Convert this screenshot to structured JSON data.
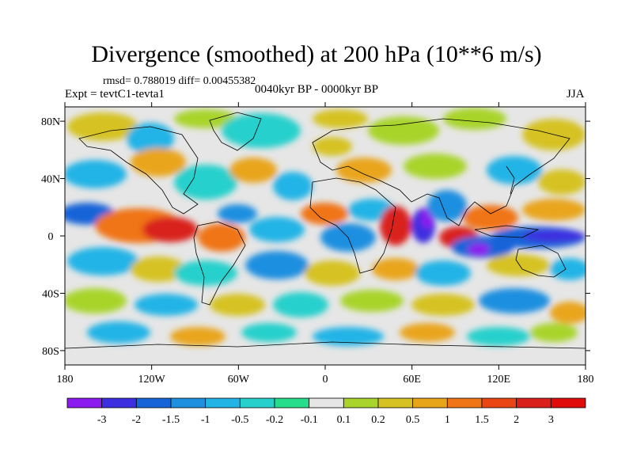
{
  "title": "Divergence (smoothed) at 200 hPa (10**6 m/s)",
  "stats": "rmsd= 0.788019 diff= 0.00455382",
  "experiment": "Expt = tevtC1-tevta1",
  "period": "0040kyr BP - 0000kyr BP",
  "season": "JJA",
  "map": {
    "lat_ticks": [
      "80N",
      "40N",
      "0",
      "40S",
      "80S"
    ],
    "lon_ticks": [
      "180",
      "120W",
      "60W",
      "0",
      "60E",
      "120E",
      "180"
    ],
    "lon_range": [
      -180,
      180
    ],
    "lat_range": [
      -90,
      90
    ]
  },
  "colorbar": {
    "labels": [
      "-3",
      "-2",
      "-1.5",
      "-1",
      "-0.5",
      "-0.2",
      "-0.1",
      "0.1",
      "0.2",
      "0.5",
      "1",
      "1.5",
      "2",
      "3"
    ],
    "colors": [
      "#8c1bef",
      "#3d2ee0",
      "#1763d8",
      "#1f8fe0",
      "#23b4e6",
      "#28d0cc",
      "#25dd8a",
      "#e6e6e6",
      "#a8d42c",
      "#d6c222",
      "#e9a51a",
      "#f07516",
      "#ea4614",
      "#d9201a",
      "#e00c0c"
    ]
  },
  "colors": {
    "background": "#ffffff",
    "no_data": "#e6e6e6"
  }
}
